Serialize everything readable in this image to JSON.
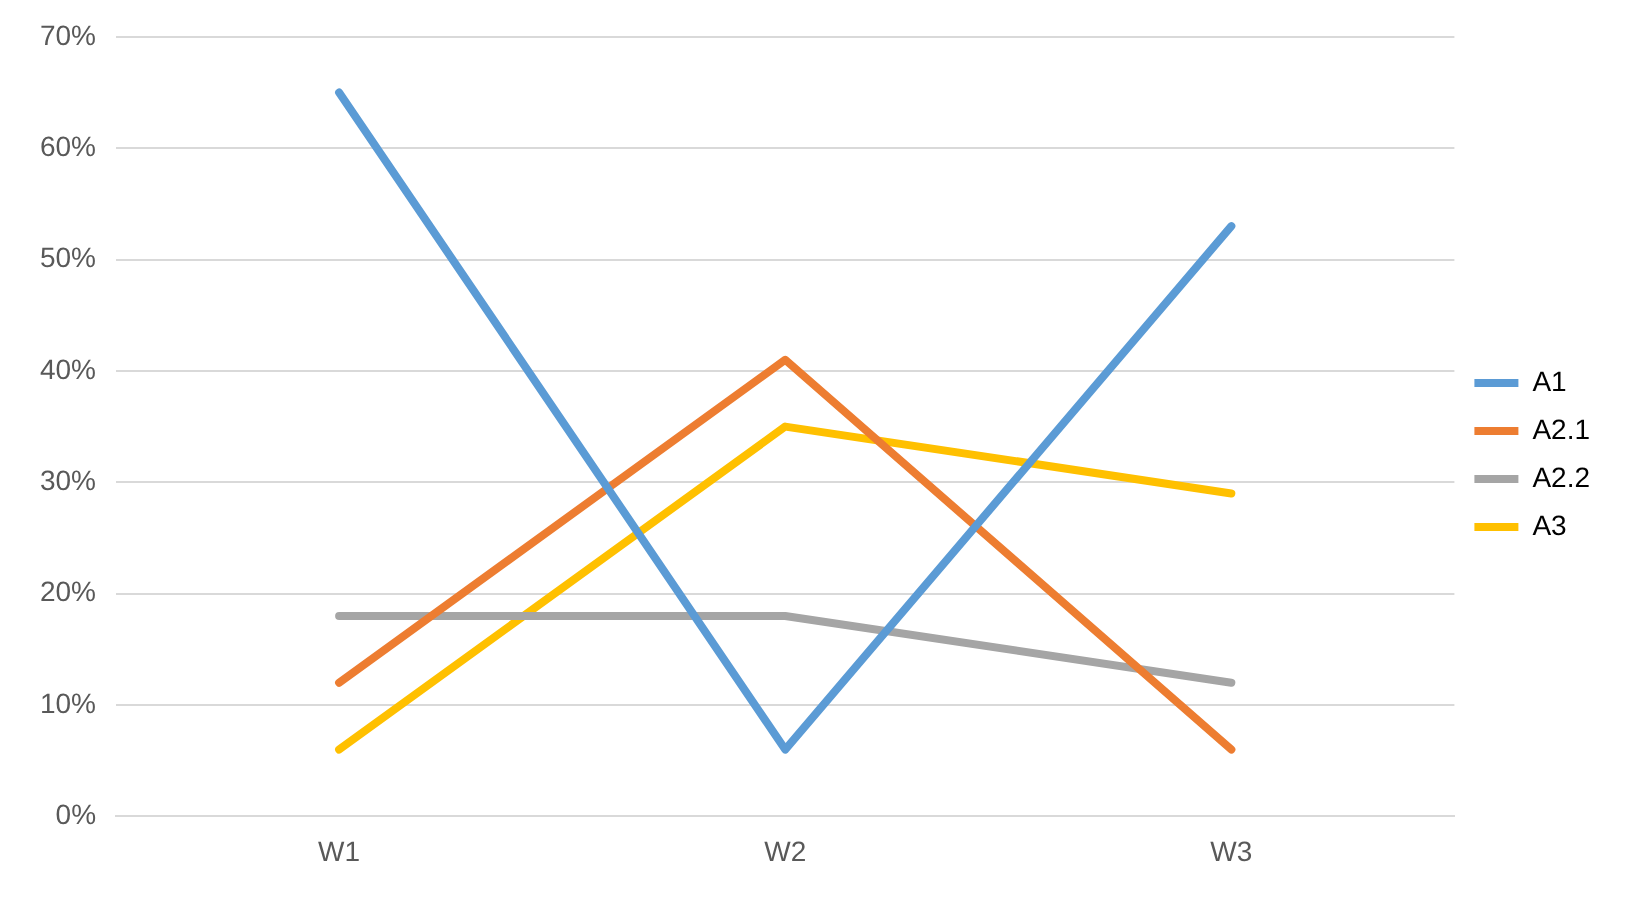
{
  "chart_data": {
    "type": "line",
    "categories": [
      "W1",
      "W2",
      "W3"
    ],
    "series": [
      {
        "name": "A1",
        "color": "#5b9bd5",
        "values": [
          65,
          6,
          53
        ]
      },
      {
        "name": "A2.1",
        "color": "#ed7d31",
        "values": [
          12,
          41,
          6
        ]
      },
      {
        "name": "A2.2",
        "color": "#a5a5a5",
        "values": [
          18,
          18,
          12
        ]
      },
      {
        "name": "A3",
        "color": "#ffc000",
        "values": [
          6,
          35,
          29
        ]
      }
    ],
    "ylim": [
      0,
      70
    ],
    "yticks": [
      {
        "value": 0,
        "label": "0%"
      },
      {
        "value": 10,
        "label": "10%"
      },
      {
        "value": 20,
        "label": "20%"
      },
      {
        "value": 30,
        "label": "30%"
      },
      {
        "value": 40,
        "label": "40%"
      },
      {
        "value": 50,
        "label": "50%"
      },
      {
        "value": 60,
        "label": "60%"
      },
      {
        "value": 70,
        "label": "70%"
      }
    ],
    "grid": "y",
    "legend": "right",
    "marker": "none",
    "line_style": "solid"
  }
}
